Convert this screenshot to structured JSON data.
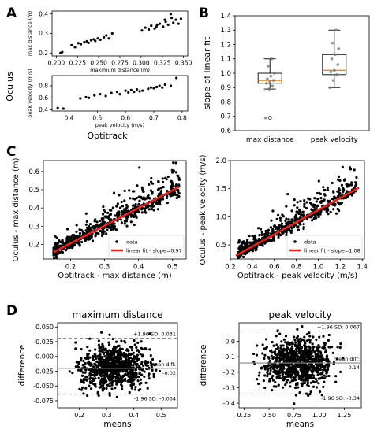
{
  "panel_letters": {
    "A": "A",
    "B": "B",
    "C": "C",
    "D": "D"
  },
  "panel_a": {
    "side_label": "Oculus",
    "bottom_label": "Optitrack"
  },
  "chart_data": [
    {
      "id": "A1",
      "type": "scatter",
      "xlabel": "maximum distance (m)",
      "ylabel": "max distance (m)",
      "xlim": [
        0.195,
        0.355
      ],
      "ylim": [
        0.185,
        0.415
      ],
      "xticks": [
        0.2,
        0.225,
        0.25,
        0.275,
        0.3,
        0.325,
        0.35
      ],
      "xtick_labels": [
        "0.200",
        "0.225",
        "0.250",
        "0.275",
        "0.300",
        "0.325",
        "0.350"
      ],
      "yticks": [
        0.2,
        0.3,
        0.4
      ],
      "ytick_labels": [
        "0.2",
        "0.3",
        "0.4"
      ],
      "points": [
        [
          0.205,
          0.2
        ],
        [
          0.207,
          0.205
        ],
        [
          0.218,
          0.24
        ],
        [
          0.222,
          0.23
        ],
        [
          0.226,
          0.25
        ],
        [
          0.229,
          0.245
        ],
        [
          0.233,
          0.255
        ],
        [
          0.236,
          0.26
        ],
        [
          0.238,
          0.252
        ],
        [
          0.241,
          0.265
        ],
        [
          0.244,
          0.27
        ],
        [
          0.246,
          0.262
        ],
        [
          0.249,
          0.275
        ],
        [
          0.252,
          0.268
        ],
        [
          0.256,
          0.28
        ],
        [
          0.259,
          0.29
        ],
        [
          0.262,
          0.275
        ],
        [
          0.266,
          0.3
        ],
        [
          0.301,
          0.315
        ],
        [
          0.305,
          0.33
        ],
        [
          0.309,
          0.32
        ],
        [
          0.312,
          0.34
        ],
        [
          0.316,
          0.325
        ],
        [
          0.319,
          0.345
        ],
        [
          0.322,
          0.35
        ],
        [
          0.326,
          0.335
        ],
        [
          0.329,
          0.36
        ],
        [
          0.332,
          0.345
        ],
        [
          0.335,
          0.4
        ],
        [
          0.338,
          0.355
        ],
        [
          0.341,
          0.37
        ],
        [
          0.344,
          0.35
        ],
        [
          0.347,
          0.375
        ],
        [
          0.336,
          0.38
        ],
        [
          0.328,
          0.37
        ],
        [
          0.318,
          0.335
        ]
      ]
    },
    {
      "id": "A2",
      "type": "scatter",
      "xlabel": "peak velocity (m/s)",
      "ylabel": "peak velocity (m/s)",
      "xlim": [
        0.34,
        0.82
      ],
      "ylim": [
        0.38,
        0.97
      ],
      "xticks": [
        0.4,
        0.5,
        0.6,
        0.7,
        0.8
      ],
      "xtick_labels": [
        "0.4",
        "0.5",
        "0.6",
        "0.7",
        "0.8"
      ],
      "yticks": [
        0.4,
        0.6,
        0.8
      ],
      "ytick_labels": [
        "0.4",
        "0.6",
        "0.8"
      ],
      "points": [
        [
          0.36,
          0.43
        ],
        [
          0.38,
          0.42
        ],
        [
          0.44,
          0.59
        ],
        [
          0.46,
          0.61
        ],
        [
          0.47,
          0.6
        ],
        [
          0.49,
          0.64
        ],
        [
          0.51,
          0.66
        ],
        [
          0.53,
          0.63
        ],
        [
          0.55,
          0.68
        ],
        [
          0.57,
          0.7
        ],
        [
          0.58,
          0.66
        ],
        [
          0.6,
          0.72
        ],
        [
          0.61,
          0.69
        ],
        [
          0.62,
          0.73
        ],
        [
          0.63,
          0.7
        ],
        [
          0.64,
          0.74
        ],
        [
          0.65,
          0.71
        ],
        [
          0.66,
          0.72
        ],
        [
          0.68,
          0.75
        ],
        [
          0.69,
          0.77
        ],
        [
          0.7,
          0.76
        ],
        [
          0.71,
          0.78
        ],
        [
          0.72,
          0.8
        ],
        [
          0.73,
          0.77
        ],
        [
          0.74,
          0.82
        ],
        [
          0.76,
          0.8
        ],
        [
          0.78,
          0.93
        ]
      ]
    },
    {
      "id": "B",
      "type": "box",
      "ylabel": "slope of linear fit",
      "ylim": [
        0.6,
        1.4
      ],
      "yticks": [
        0.6,
        0.7,
        0.8,
        0.9,
        1.0,
        1.1,
        1.2,
        1.3,
        1.4
      ],
      "ytick_labels": [
        "0.6",
        "0.7",
        "0.8",
        "0.9",
        "1.0",
        "1.1",
        "1.2",
        "1.3",
        "1.4"
      ],
      "categories": [
        "max distance",
        "peak velocity"
      ],
      "boxes": [
        {
          "whisker_low": 0.89,
          "q1": 0.93,
          "median": 0.95,
          "q3": 1.0,
          "whisker_high": 1.1,
          "outliers": [
            0.69
          ],
          "points": [
            0.69,
            0.89,
            0.91,
            0.93,
            0.94,
            0.95,
            0.96,
            0.98,
            1.0,
            1.05,
            1.1
          ]
        },
        {
          "whisker_low": 0.9,
          "q1": 0.99,
          "median": 1.02,
          "q3": 1.13,
          "whisker_high": 1.3,
          "outliers": [],
          "points": [
            0.9,
            0.95,
            0.99,
            1.01,
            1.02,
            1.06,
            1.1,
            1.13,
            1.17,
            1.21,
            1.3
          ]
        }
      ]
    },
    {
      "id": "C1",
      "type": "scatter",
      "xlabel": "Optitrack - max distance (m)",
      "ylabel": "Oculus - max distance (m)",
      "xlim": [
        0.12,
        0.54
      ],
      "ylim": [
        0.12,
        0.66
      ],
      "xticks": [
        0.2,
        0.3,
        0.4,
        0.5
      ],
      "xtick_labels": [
        "0.2",
        "0.3",
        "0.4",
        "0.5"
      ],
      "yticks": [
        0.2,
        0.3,
        0.4,
        0.5,
        0.6
      ],
      "ytick_labels": [
        "0.2",
        "0.3",
        "0.4",
        "0.5",
        "0.6"
      ],
      "fit": {
        "slope": 0.97,
        "intercept": 0.012,
        "x_range": [
          0.15,
          0.52
        ]
      },
      "legend": [
        "data",
        "linear fit - slope=0.97"
      ],
      "cloud": {
        "n": 650,
        "x_range": [
          0.15,
          0.52
        ],
        "spread": 0.04,
        "skew_up": 0.05,
        "seed": 11
      }
    },
    {
      "id": "C2",
      "type": "scatter",
      "xlabel": "Optitrack - peak velocity (m/s)",
      "ylabel": "Oculus - peak velocity (m/s)",
      "xlim": [
        0.2,
        1.42
      ],
      "ylim": [
        0.25,
        2.0
      ],
      "xticks": [
        0.2,
        0.4,
        0.6,
        0.8,
        1.0,
        1.2,
        1.4
      ],
      "xtick_labels": [
        "0.2",
        "0.4",
        "0.6",
        "0.8",
        "1.0",
        "1.2",
        "1.4"
      ],
      "yticks": [
        0.5,
        1.0,
        1.5,
        2.0
      ],
      "ytick_labels": [
        "0.5",
        "1.0",
        "1.5",
        "2.0"
      ],
      "fit": {
        "slope": 1.08,
        "intercept": 0.04,
        "x_range": [
          0.25,
          1.37
        ]
      },
      "legend": [
        "data",
        "linear fit - slope=1.08"
      ],
      "cloud": {
        "n": 650,
        "x_range": [
          0.27,
          1.35
        ],
        "spread": 0.1,
        "skew_up": 0.22,
        "seed": 23
      }
    },
    {
      "id": "D1",
      "type": "scatter",
      "title": "maximum distance",
      "xlabel": "means",
      "ylabel": "difference",
      "xlim": [
        0.12,
        0.56
      ],
      "ylim": [
        -0.087,
        0.057
      ],
      "xticks": [
        0.2,
        0.3,
        0.4,
        0.5
      ],
      "xtick_labels": [
        "0.2",
        "0.3",
        "0.4",
        "0.5"
      ],
      "yticks": [
        -0.075,
        -0.05,
        -0.025,
        0.0,
        0.025,
        0.05
      ],
      "ytick_labels": [
        "-0.075",
        "-0.050",
        "-0.025",
        "0.000",
        "0.025",
        "0.050"
      ],
      "hlines": [
        {
          "value": 0.031,
          "style": "dashed",
          "label": "+1.96 SD: 0.031"
        },
        {
          "value": -0.02,
          "style": "solid",
          "label_top": "mean diff:",
          "label": "-0.02"
        },
        {
          "value": -0.064,
          "style": "dashed",
          "label": "-1.96 SD: -0.064"
        }
      ],
      "cloud": {
        "n": 850,
        "x_range": [
          0.14,
          0.52
        ],
        "center": -0.018,
        "spread": 0.018,
        "seed": 37
      }
    },
    {
      "id": "D2",
      "type": "scatter",
      "title": "peak velocity",
      "xlabel": "means",
      "ylabel": "difference",
      "xlim": [
        0.2,
        1.42
      ],
      "ylim": [
        -0.43,
        0.12
      ],
      "xticks": [
        0.25,
        0.5,
        0.75,
        1.0,
        1.25
      ],
      "xtick_labels": [
        "0.25",
        "0.50",
        "0.75",
        "1.00",
        "1.25"
      ],
      "yticks": [
        -0.4,
        -0.3,
        -0.2,
        -0.1,
        0.0
      ],
      "ytick_labels": [
        "-0.4",
        "-0.3",
        "-0.2",
        "-0.1",
        "0.0"
      ],
      "hlines": [
        {
          "value": 0.067,
          "style": "dotted",
          "label": "+1.96 SD: 0.067"
        },
        {
          "value": -0.14,
          "style": "solid",
          "label_top": "mean diff:",
          "label": "-0.14"
        },
        {
          "value": -0.34,
          "style": "dotted",
          "label": "-1.96 SD: -0.34"
        }
      ],
      "cloud": {
        "n": 850,
        "x_range": [
          0.3,
          1.3
        ],
        "center": -0.14,
        "spread": 0.08,
        "seed": 53
      }
    }
  ]
}
